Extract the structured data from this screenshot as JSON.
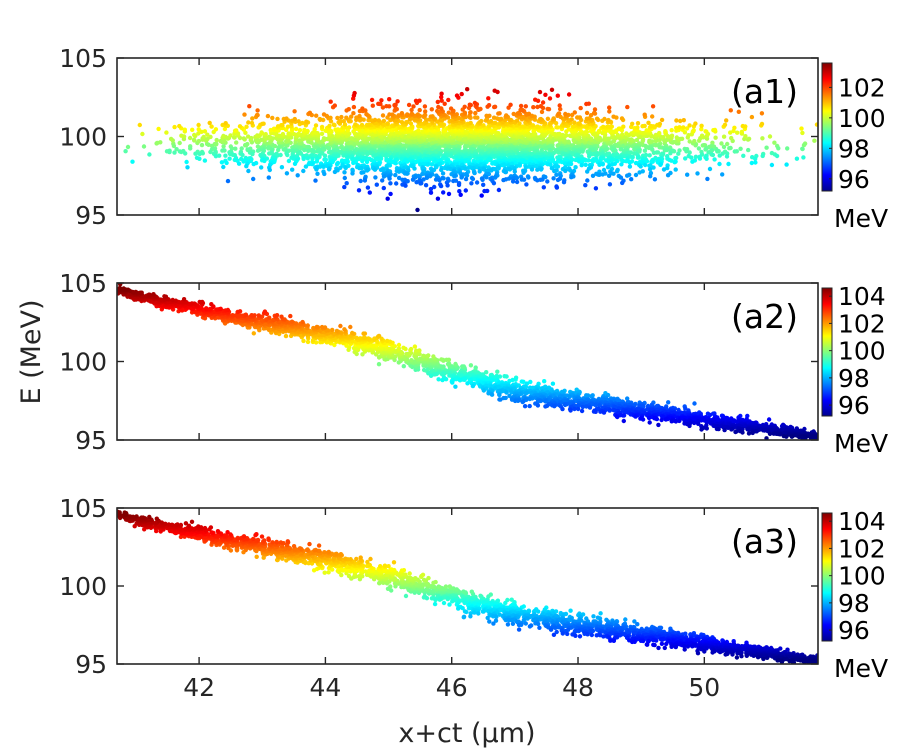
{
  "chart_data": {
    "type": "scatter",
    "colormap": "jet",
    "shared_xlabel": "x+ct (μm)",
    "shared_ylabel": "E (MeV)",
    "xlim": [
      40.7,
      51.8
    ],
    "x_ticks": [
      42,
      44,
      46,
      48,
      50
    ],
    "x_tick_labels": [
      "42",
      "44",
      "46",
      "48",
      "50"
    ],
    "panels": [
      {
        "id": "a1",
        "label": "(a1)",
        "kind": "gaussian_cloud",
        "ylim": [
          95,
          105
        ],
        "y_ticks": [
          95,
          100,
          105
        ],
        "y_tick_labels": [
          "95",
          "100",
          "105"
        ],
        "x_center": 46.2,
        "x_sigma": 1.9,
        "x_range": [
          40.7,
          51.8
        ],
        "energy_center": 99.5,
        "energy_sigma": 1.2,
        "energy_range": [
          95.0,
          103.3
        ],
        "point_count": 4500,
        "colorbar": {
          "range": [
            95.2,
            103.6
          ],
          "ticks": [
            96,
            98,
            100,
            102
          ],
          "tick_labels": [
            "96",
            "98",
            "100",
            "102"
          ],
          "unit": "MeV"
        }
      },
      {
        "id": "a2",
        "label": "(a2)",
        "kind": "chirped_line",
        "ylim": [
          95,
          105
        ],
        "y_ticks": [
          95,
          100,
          105
        ],
        "y_tick_labels": [
          "95",
          "100",
          "105"
        ],
        "curve_x": [
          40.7,
          41.0,
          42.0,
          43.0,
          44.0,
          45.0,
          46.0,
          47.0,
          48.0,
          49.0,
          50.0,
          51.0,
          51.8
        ],
        "curve_e": [
          104.6,
          104.2,
          103.3,
          102.5,
          101.7,
          100.7,
          99.3,
          98.2,
          97.5,
          96.9,
          96.3,
          95.7,
          95.2
        ],
        "spread_mev": 0.35,
        "point_count": 2600,
        "colorbar": {
          "range": [
            95.2,
            104.6
          ],
          "ticks": [
            96,
            98,
            100,
            102,
            104
          ],
          "tick_labels": [
            "96",
            "98",
            "100",
            "102",
            "104"
          ],
          "unit": "MeV"
        }
      },
      {
        "id": "a3",
        "label": "(a3)",
        "kind": "chirped_line",
        "ylim": [
          95,
          105
        ],
        "y_ticks": [
          95,
          100,
          105
        ],
        "y_tick_labels": [
          "95",
          "100",
          "105"
        ],
        "curve_x": [
          40.7,
          41.0,
          42.0,
          43.0,
          44.0,
          45.0,
          46.0,
          47.0,
          48.0,
          49.0,
          50.0,
          51.0,
          51.8
        ],
        "curve_e": [
          104.6,
          104.2,
          103.3,
          102.5,
          101.7,
          100.7,
          99.3,
          98.2,
          97.5,
          96.9,
          96.3,
          95.7,
          95.2
        ],
        "spread_mev": 0.35,
        "point_count": 2600,
        "colorbar": {
          "range": [
            95.2,
            104.6
          ],
          "ticks": [
            96,
            98,
            100,
            102,
            104
          ],
          "tick_labels": [
            "96",
            "98",
            "100",
            "102",
            "104"
          ],
          "unit": "MeV"
        }
      }
    ]
  }
}
